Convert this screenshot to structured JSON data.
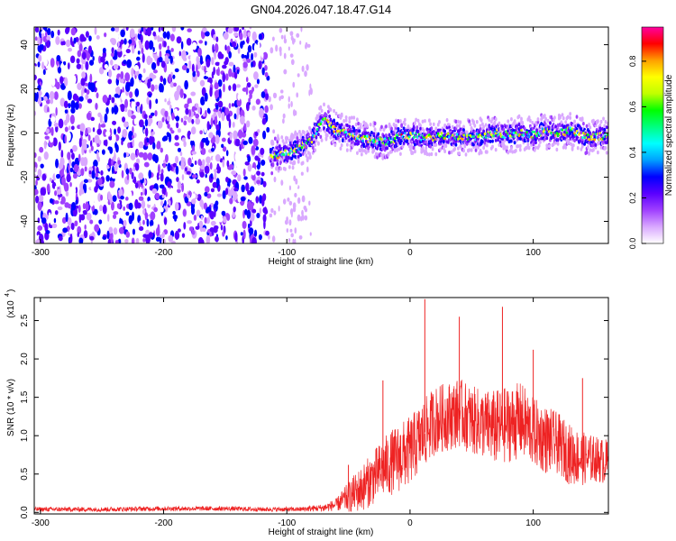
{
  "title": "GN04.2026.047.18.47.G14",
  "chart_data": [
    {
      "type": "heatmap",
      "xlabel": "Height of straight line (km)",
      "ylabel": "Frequency (Hz)",
      "xlim": [
        -305,
        161
      ],
      "ylim": [
        -50,
        48
      ],
      "x_ticks": [
        -300,
        -200,
        -100,
        0,
        100
      ],
      "x_tick_labels": [
        "-300",
        "-200",
        "-100",
        "0",
        "100"
      ],
      "y_ticks": [
        -40,
        -20,
        0,
        20,
        40
      ],
      "y_tick_labels": [
        "-40",
        "-20",
        "0",
        "20",
        "40"
      ],
      "colorbar": {
        "label": "Normalized spectral amplitude",
        "range": [
          0.0,
          0.95
        ],
        "ticks": [
          0.0,
          0.2,
          0.4,
          0.6,
          0.8
        ],
        "tick_labels": [
          "0.0",
          "0.2",
          "0.4",
          "0.6",
          "0.8"
        ],
        "colors": [
          "#ffffff",
          "#d9a8ff",
          "#a040ff",
          "#5a00ff",
          "#0000ff",
          "#00a0ff",
          "#00ffff",
          "#00ff80",
          "#00ff00",
          "#c0ff00",
          "#ffff00",
          "#ffa000",
          "#ff0000",
          "#ff00a0"
        ]
      },
      "noise_region_x": [
        -305,
        -115
      ],
      "sparse_region_x": [
        -115,
        -80
      ],
      "signal_track": {
        "x": [
          -113,
          -100,
          -90,
          -80,
          -75,
          -70,
          -65,
          -60,
          -50,
          -40,
          -30,
          -20,
          -10,
          0,
          10,
          20,
          30,
          40,
          50,
          60,
          70,
          80,
          90,
          100,
          110,
          120,
          130,
          140,
          150,
          160
        ],
        "frequency": [
          -11,
          -9,
          -7,
          -3,
          2,
          6,
          4,
          1,
          0,
          -2,
          -3,
          -4,
          -2,
          -1,
          -2,
          -2,
          -1,
          -2,
          -2,
          -1,
          0,
          -1,
          0,
          -1,
          1,
          0,
          1,
          -1,
          -2,
          -1
        ]
      }
    },
    {
      "type": "line",
      "xlabel": "Height of straight line (km)",
      "ylabel": "SNR (10 * v/v)",
      "y_multiplier": "(x10",
      "y_multiplier_exp": "4",
      "xlim": [
        -305,
        161
      ],
      "ylim": [
        -0.02,
        2.8
      ],
      "x_ticks": [
        -300,
        -200,
        -100,
        0,
        100
      ],
      "x_tick_labels": [
        "-300",
        "-200",
        "-100",
        "0",
        "100"
      ],
      "y_ticks": [
        0.0,
        0.5,
        1.0,
        1.5,
        2.0,
        2.5
      ],
      "y_tick_labels": [
        "0.0",
        "0.5",
        "1.0",
        "1.5",
        "2.0",
        "2.5"
      ],
      "color": "#ee2222",
      "envelope": {
        "x": [
          -305,
          -250,
          -200,
          -150,
          -120,
          -100,
          -90,
          -80,
          -70,
          -60,
          -50,
          -40,
          -30,
          -20,
          -10,
          0,
          10,
          20,
          30,
          40,
          50,
          60,
          70,
          80,
          90,
          100,
          110,
          120,
          130,
          140,
          150,
          161
        ],
        "mean": [
          0.04,
          0.04,
          0.05,
          0.05,
          0.04,
          0.04,
          0.04,
          0.05,
          0.06,
          0.1,
          0.2,
          0.3,
          0.45,
          0.6,
          0.7,
          0.8,
          1.0,
          1.2,
          1.25,
          1.3,
          1.2,
          1.15,
          1.1,
          1.15,
          1.2,
          1.05,
          0.95,
          0.9,
          0.75,
          0.7,
          0.7,
          0.65
        ],
        "spread": [
          0.03,
          0.03,
          0.03,
          0.03,
          0.03,
          0.03,
          0.03,
          0.04,
          0.05,
          0.08,
          0.2,
          0.3,
          0.35,
          0.4,
          0.45,
          0.45,
          0.45,
          0.45,
          0.45,
          0.45,
          0.45,
          0.45,
          0.5,
          0.5,
          0.5,
          0.45,
          0.45,
          0.4,
          0.4,
          0.35,
          0.3,
          0.3
        ]
      },
      "spikes": [
        {
          "x": -50,
          "y": 0.62
        },
        {
          "x": -22,
          "y": 1.72
        },
        {
          "x": 12,
          "y": 2.78
        },
        {
          "x": 40,
          "y": 2.55
        },
        {
          "x": 75,
          "y": 2.68
        },
        {
          "x": 100,
          "y": 2.12
        },
        {
          "x": 140,
          "y": 1.75
        }
      ]
    }
  ]
}
